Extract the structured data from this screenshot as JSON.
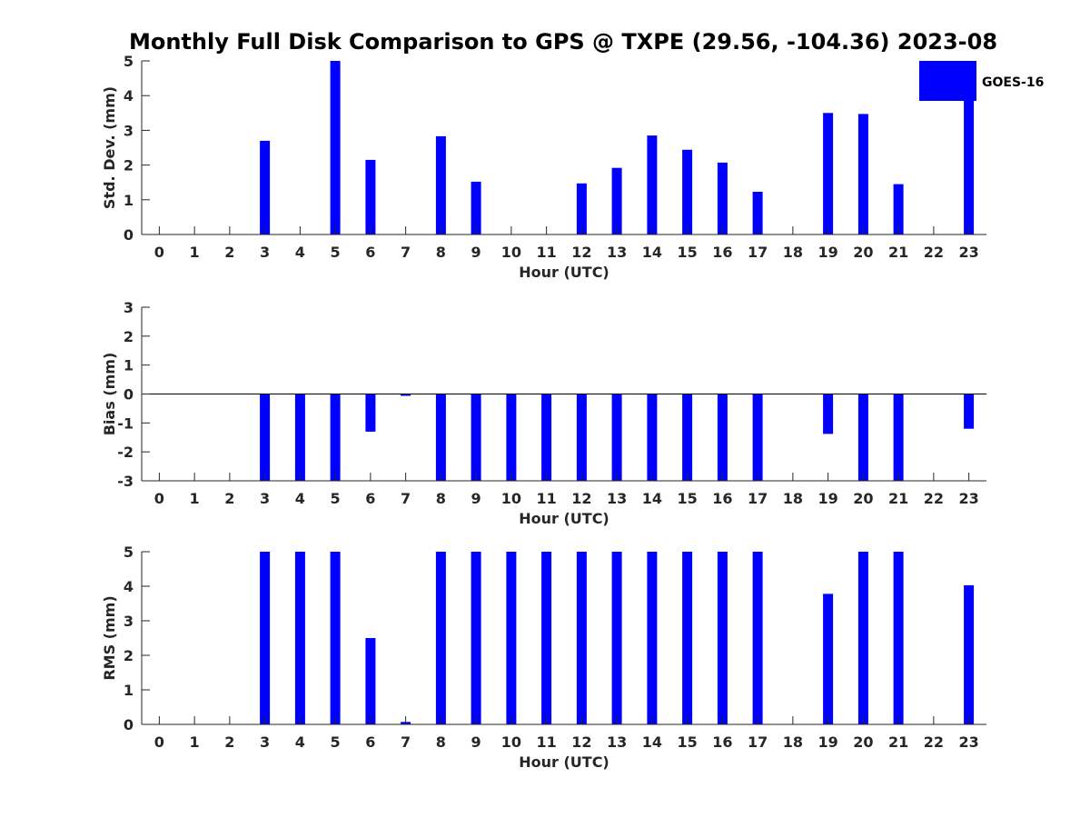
{
  "title": "Monthly Full Disk Comparison to GPS @ TXPE (29.56, -104.36) 2023-08",
  "colors": {
    "bar": "#0000ff",
    "axis": "#262626"
  },
  "chart_data": [
    {
      "type": "bar",
      "x": [
        0,
        1,
        2,
        3,
        4,
        5,
        6,
        7,
        8,
        9,
        10,
        11,
        12,
        13,
        14,
        15,
        16,
        17,
        18,
        19,
        20,
        21,
        22,
        23
      ],
      "xlabel": "Hour (UTC)",
      "ylabel": "Std. Dev. (mm)",
      "ylim": [
        0,
        5
      ],
      "yticks": [
        0,
        1,
        2,
        3,
        4,
        5
      ],
      "series": [
        {
          "name": "GOES-16",
          "values": [
            null,
            null,
            null,
            2.7,
            null,
            5.0,
            2.15,
            null,
            2.83,
            1.52,
            null,
            null,
            1.47,
            1.92,
            2.85,
            2.44,
            2.07,
            1.23,
            null,
            3.5,
            3.47,
            1.45,
            null,
            3.9
          ]
        }
      ],
      "legend": {
        "entries": [
          "GOES-16"
        ],
        "placement": "top-right"
      }
    },
    {
      "type": "bar",
      "x": [
        0,
        1,
        2,
        3,
        4,
        5,
        6,
        7,
        8,
        9,
        10,
        11,
        12,
        13,
        14,
        15,
        16,
        17,
        18,
        19,
        20,
        21,
        22,
        23
      ],
      "xlabel": "Hour (UTC)",
      "ylabel": "Bias (mm)",
      "ylim": [
        -3,
        3
      ],
      "yticks": [
        -3,
        -2,
        -1,
        0,
        1,
        2,
        3
      ],
      "series": [
        {
          "name": "GOES-16",
          "values": [
            null,
            null,
            null,
            -3.0,
            -3.0,
            -3.0,
            -1.3,
            -0.05,
            -3.0,
            -3.0,
            -3.0,
            -3.0,
            -3.0,
            -3.0,
            -3.0,
            -3.0,
            -3.0,
            -3.0,
            null,
            -1.38,
            -3.0,
            -3.0,
            null,
            -1.2
          ]
        }
      ]
    },
    {
      "type": "bar",
      "x": [
        0,
        1,
        2,
        3,
        4,
        5,
        6,
        7,
        8,
        9,
        10,
        11,
        12,
        13,
        14,
        15,
        16,
        17,
        18,
        19,
        20,
        21,
        22,
        23
      ],
      "xlabel": "Hour (UTC)",
      "ylabel": "RMS (mm)",
      "ylim": [
        0,
        5
      ],
      "yticks": [
        0,
        1,
        2,
        3,
        4,
        5
      ],
      "series": [
        {
          "name": "GOES-16",
          "values": [
            null,
            null,
            null,
            5.0,
            5.0,
            5.0,
            2.5,
            0.07,
            5.0,
            5.0,
            5.0,
            5.0,
            5.0,
            5.0,
            5.0,
            5.0,
            5.0,
            5.0,
            null,
            3.78,
            5.0,
            5.0,
            null,
            4.03
          ]
        }
      ]
    }
  ]
}
